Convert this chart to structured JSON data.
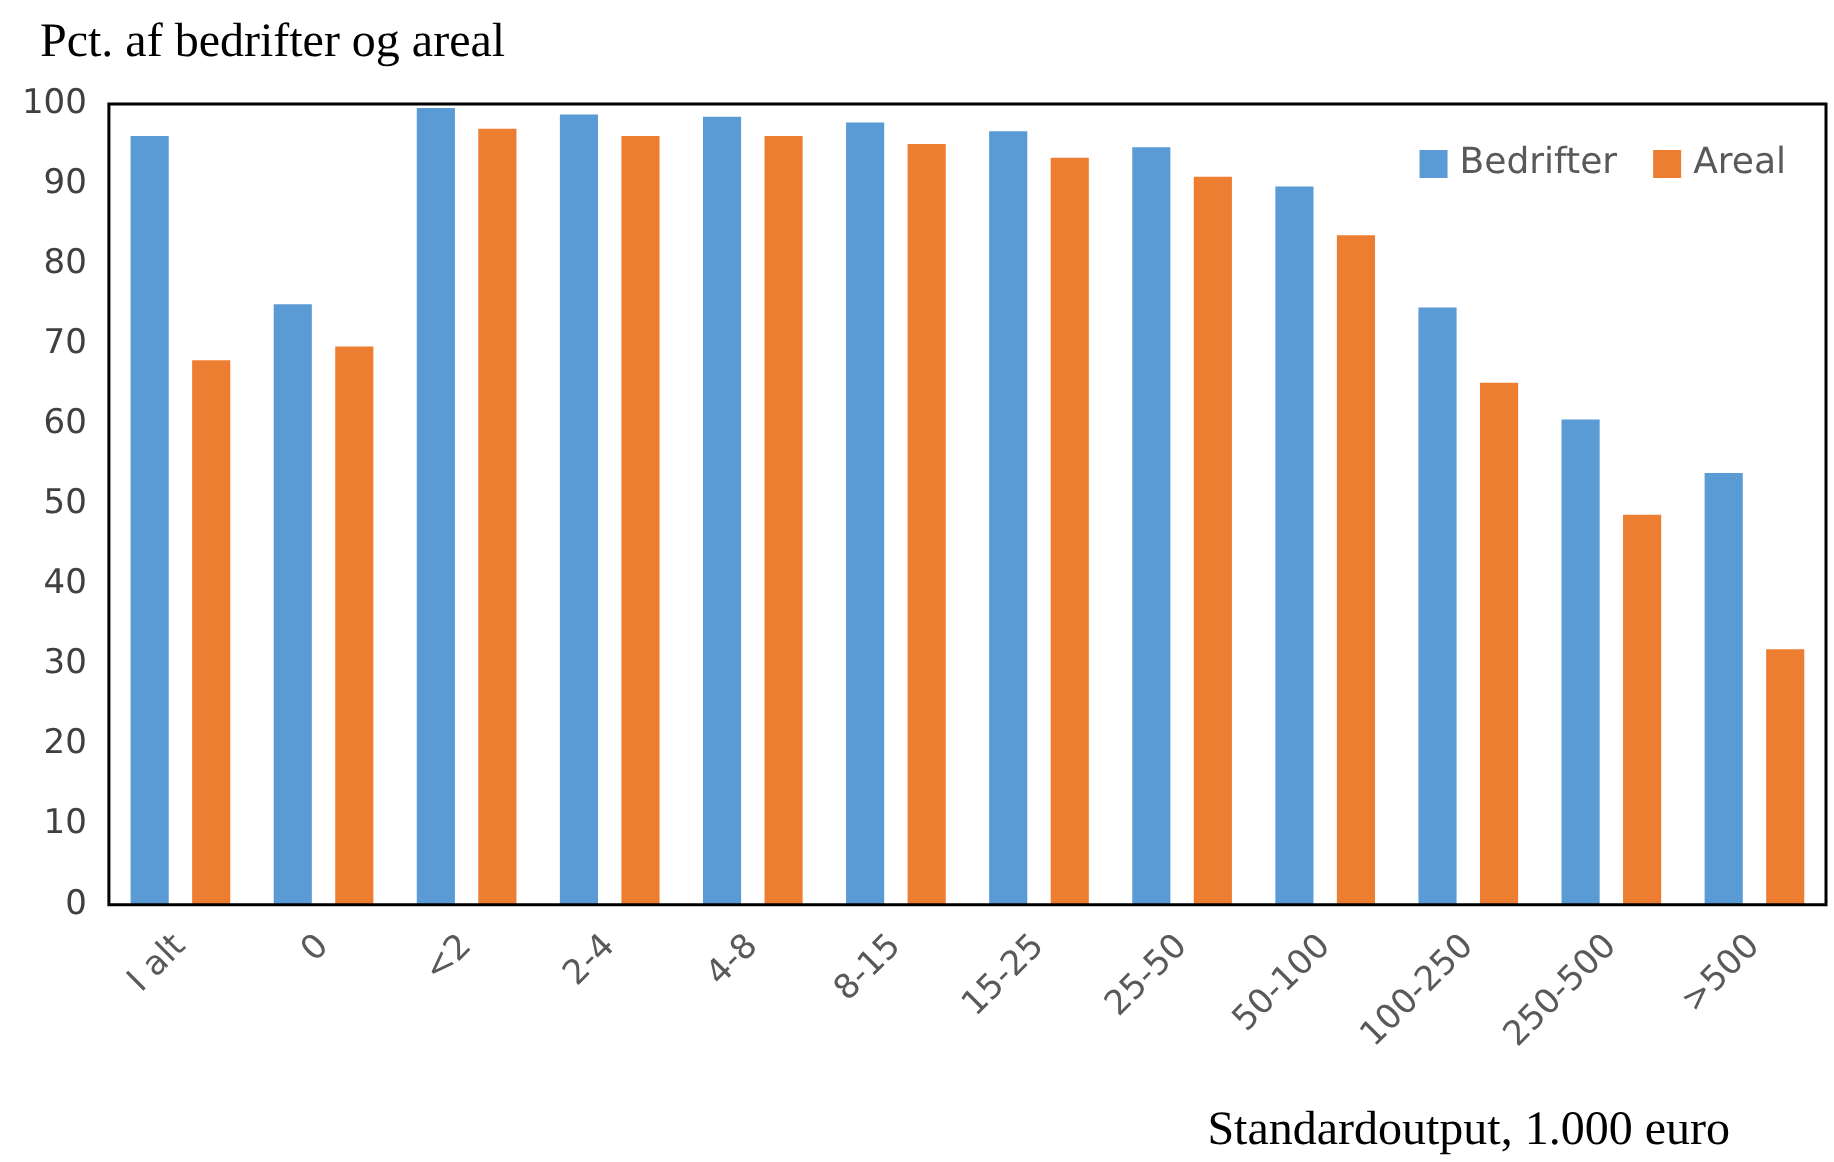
{
  "chart_data": {
    "type": "bar",
    "ylabel": "Pct. af bedrifter og areal",
    "xlabel": "Standardoutput, 1.000 euro",
    "categories": [
      "I alt",
      "0",
      "<2",
      "2-4",
      "4-8",
      "8-15",
      "15-25",
      "25-50",
      "50-100",
      "100-250",
      "250-500",
      ">500"
    ],
    "series": [
      {
        "name": "Bedrifter",
        "color": "#5b9bd5",
        "values": [
          96,
          75,
          99.5,
          98.7,
          98.4,
          97.7,
          96.6,
          94.6,
          89.7,
          74.6,
          60.6,
          53.9
        ]
      },
      {
        "name": "Areal",
        "color": "#ed7d31",
        "values": [
          68,
          69.7,
          96.9,
          96,
          96,
          95,
          93.3,
          90.9,
          83.6,
          65.2,
          48.7,
          31.9
        ]
      }
    ],
    "ylim": [
      0,
      100
    ],
    "yticks": [
      0,
      10,
      20,
      30,
      40,
      50,
      60,
      70,
      80,
      90,
      100
    ],
    "grid": false,
    "legend": "top right"
  }
}
